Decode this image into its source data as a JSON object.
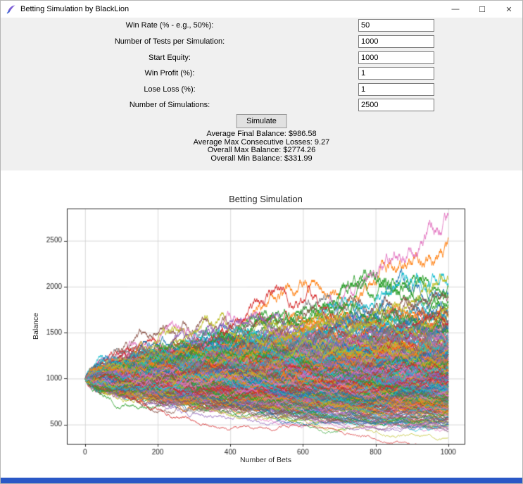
{
  "window": {
    "title": "Betting Simulation by BlackLion",
    "minimize_glyph": "—",
    "maximize_glyph": "☐",
    "close_glyph": "✕"
  },
  "form": {
    "fields": [
      {
        "label": "Win Rate (% - e.g., 50%):",
        "value": "50"
      },
      {
        "label": "Number of Tests per Simulation:",
        "value": "1000"
      },
      {
        "label": "Start Equity:",
        "value": "1000"
      },
      {
        "label": "Win Profit (%):",
        "value": "1"
      },
      {
        "label": "Lose Loss (%):",
        "value": "1"
      },
      {
        "label": "Number of Simulations:",
        "value": "2500"
      }
    ],
    "simulate_label": "Simulate"
  },
  "results": {
    "lines": [
      "Average Final Balance: $986.58",
      "Average Max Consecutive Losses: 9.27",
      "Overall Max Balance: $2774.26",
      "Overall Min Balance: $331.99"
    ]
  },
  "chart_data": {
    "type": "line",
    "title": "Betting Simulation",
    "xlabel": "Number of Bets",
    "ylabel": "Balance",
    "xlim": [
      -50,
      1045
    ],
    "ylim": [
      290,
      2850
    ],
    "x_ticks": [
      0,
      200,
      400,
      600,
      800,
      1000
    ],
    "y_ticks": [
      500,
      1000,
      1500,
      2000,
      2500
    ],
    "grid": true,
    "legend": "none",
    "series_description": "2500 overlapping equity curves: multiplicative random walks starting at 1000, 1000 bets each, +1% on win / -1% on loss, 50% win rate; observed final stats: avg 986.58, max 2774.26, min 331.99",
    "simulation": {
      "num_lines_drawn": 420,
      "num_bets": 1000,
      "start_equity": 1000,
      "win_rate": 0.5,
      "win_profit_pct": 1,
      "lose_loss_pct": 1,
      "seed": 1337
    },
    "colors": [
      "#1f77b4",
      "#ff7f0e",
      "#2ca02c",
      "#d62728",
      "#9467bd",
      "#8c564b",
      "#e377c2",
      "#7f7f7f",
      "#bcbd22",
      "#17becf"
    ],
    "grid_color": "#cfcfcf",
    "spine_color": "#2b2b2b"
  }
}
